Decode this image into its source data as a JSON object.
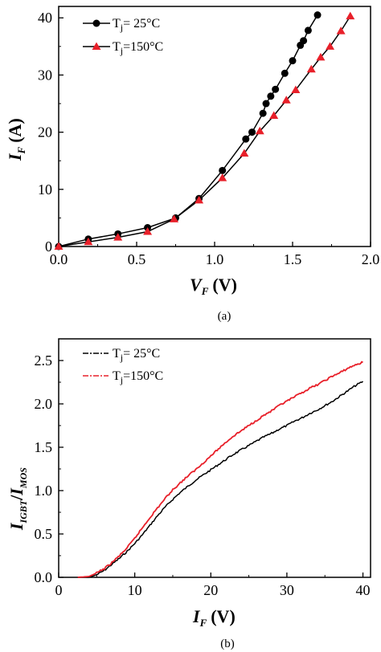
{
  "chart_data": [
    {
      "type": "line",
      "caption": "(a)",
      "xlabel_main": "V",
      "xlabel_sub": "F",
      "xlabel_unit": "(V)",
      "ylabel_main": "I",
      "ylabel_sub": "F",
      "ylabel_unit": "(A)",
      "xlim": [
        0,
        2.0
      ],
      "ylim": [
        0,
        42
      ],
      "xticks": [
        "0.0",
        "0.5",
        "1.0",
        "1.5",
        "2.0"
      ],
      "yticks": [
        "0",
        "10",
        "20",
        "30",
        "40"
      ],
      "legend_position": "top-left",
      "series": [
        {
          "name": "T",
          "name_sub": "j",
          "name_rest": "=  25°C",
          "marker": "circle",
          "color": "#000000",
          "x": [
            0.0,
            0.19,
            0.38,
            0.57,
            0.75,
            0.9,
            1.05,
            1.2,
            1.24,
            1.31,
            1.33,
            1.36,
            1.39,
            1.45,
            1.5,
            1.55,
            1.57,
            1.6,
            1.66
          ],
          "y": [
            0.0,
            1.3,
            2.2,
            3.3,
            5.0,
            8.4,
            13.3,
            18.8,
            20.0,
            23.3,
            25.0,
            26.3,
            27.5,
            30.3,
            32.5,
            35.2,
            36.0,
            37.8,
            40.5
          ]
        },
        {
          "name": "T",
          "name_sub": "j",
          "name_rest": "=150°C",
          "marker": "triangle",
          "color": "#e8202a",
          "x": [
            0.0,
            0.19,
            0.38,
            0.57,
            0.74,
            0.9,
            1.05,
            1.19,
            1.29,
            1.38,
            1.46,
            1.52,
            1.62,
            1.68,
            1.74,
            1.81,
            1.87
          ],
          "y": [
            0.0,
            0.8,
            1.6,
            2.6,
            4.8,
            8.1,
            12.0,
            16.3,
            20.2,
            22.9,
            25.6,
            27.4,
            31.0,
            33.1,
            35.0,
            37.7,
            40.3
          ]
        }
      ]
    },
    {
      "type": "line",
      "caption": "(b)",
      "xlabel_main": "I",
      "xlabel_sub": "F",
      "xlabel_unit": "(V)",
      "ylabel_main": "I",
      "ylabel_sub": "IGBT",
      "ylabel_sep": "/",
      "ylabel_main2": "I",
      "ylabel_sub2": "MOS",
      "xlim": [
        0,
        41
      ],
      "ylim": [
        0,
        2.75
      ],
      "xticks": [
        "0",
        "10",
        "20",
        "30",
        "40"
      ],
      "yticks": [
        "0.0",
        "0.5",
        "1.0",
        "1.5",
        "2.0",
        "2.5"
      ],
      "legend_position": "top-left",
      "series": [
        {
          "name": "T",
          "name_sub": "j",
          "name_rest": "=  25°C",
          "color": "#000000",
          "x": [
            2.5,
            4,
            5,
            6,
            7,
            8,
            9,
            10,
            11,
            12,
            13,
            14,
            15,
            16,
            17,
            18,
            19,
            20,
            21,
            22,
            23,
            24,
            25,
            26,
            27,
            28,
            29,
            30,
            31,
            32,
            33,
            34,
            35,
            36,
            37,
            38,
            39,
            40
          ],
          "y": [
            0.0,
            0.0,
            0.03,
            0.08,
            0.15,
            0.22,
            0.3,
            0.39,
            0.49,
            0.6,
            0.71,
            0.81,
            0.9,
            0.98,
            1.05,
            1.12,
            1.18,
            1.24,
            1.3,
            1.36,
            1.42,
            1.47,
            1.52,
            1.57,
            1.62,
            1.66,
            1.71,
            1.75,
            1.8,
            1.84,
            1.89,
            1.93,
            1.98,
            2.03,
            2.09,
            2.15,
            2.21,
            2.26
          ]
        },
        {
          "name": "T",
          "name_sub": "j",
          "name_rest": "=150°C",
          "color": "#e8202a",
          "x": [
            2.5,
            4,
            5,
            6,
            7,
            8,
            9,
            10,
            11,
            12,
            13,
            14,
            15,
            16,
            17,
            18,
            19,
            20,
            21,
            22,
            23,
            24,
            25,
            26,
            27,
            28,
            29,
            30,
            31,
            32,
            33,
            34,
            35,
            36,
            37,
            38,
            39,
            40
          ],
          "y": [
            0.0,
            0.01,
            0.05,
            0.1,
            0.17,
            0.25,
            0.34,
            0.45,
            0.57,
            0.69,
            0.8,
            0.91,
            1.01,
            1.09,
            1.17,
            1.24,
            1.32,
            1.4,
            1.48,
            1.56,
            1.63,
            1.69,
            1.75,
            1.81,
            1.87,
            1.92,
            1.98,
            2.03,
            2.08,
            2.13,
            2.18,
            2.22,
            2.27,
            2.32,
            2.36,
            2.41,
            2.45,
            2.48
          ]
        }
      ]
    }
  ]
}
